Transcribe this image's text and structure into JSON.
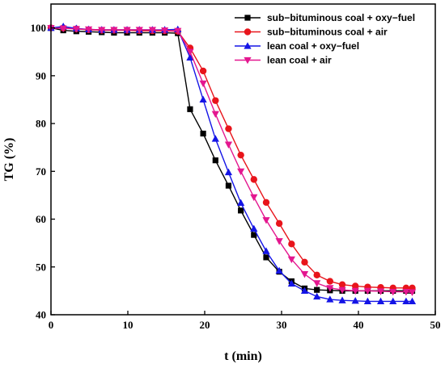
{
  "chart_data": {
    "type": "line",
    "xlabel": "t (min)",
    "ylabel": "TG (%)",
    "xlim": [
      0,
      50
    ],
    "ylim": [
      40,
      105
    ],
    "xticks": [
      0,
      10,
      20,
      30,
      40,
      50
    ],
    "yticks": [
      40,
      50,
      60,
      70,
      80,
      90,
      100
    ],
    "grid": false,
    "legend_position": "top-right",
    "series": [
      {
        "name": "sub−bituminous coal + oxy−fuel",
        "color": "#000000",
        "marker": "square",
        "x": [
          0,
          1.6,
          3.3,
          4.9,
          6.6,
          8.2,
          9.9,
          11.5,
          13.2,
          14.8,
          16.5,
          18.1,
          19.8,
          21.4,
          23.1,
          24.7,
          26.4,
          28.0,
          29.7,
          31.3,
          33.0,
          34.6,
          36.3,
          37.9,
          39.6,
          41.2,
          42.9,
          44.5,
          46.2,
          47.0
        ],
        "y": [
          100,
          99.5,
          99.3,
          99.2,
          99.1,
          99.0,
          99.0,
          99.0,
          99.0,
          99.0,
          98.9,
          83.0,
          77.9,
          72.3,
          67.0,
          61.8,
          56.7,
          52.0,
          49.0,
          47.0,
          45.5,
          45.2,
          45.1,
          45.0,
          45.0,
          45.0,
          45.0,
          45.0,
          45.0,
          45.0
        ]
      },
      {
        "name": "sub−bituminous coal + air",
        "color": "#e8141b",
        "marker": "circle",
        "x": [
          0,
          1.6,
          3.3,
          4.9,
          6.6,
          8.2,
          9.9,
          11.5,
          13.2,
          14.8,
          16.5,
          18.1,
          19.8,
          21.4,
          23.1,
          24.7,
          26.4,
          28.0,
          29.7,
          31.3,
          33.0,
          34.6,
          36.3,
          37.9,
          39.6,
          41.2,
          42.9,
          44.5,
          46.2,
          47.0
        ],
        "y": [
          100,
          100,
          99.8,
          99.6,
          99.5,
          99.5,
          99.5,
          99.4,
          99.4,
          99.4,
          99.3,
          95.8,
          91.0,
          84.8,
          78.9,
          73.4,
          68.3,
          63.5,
          59.1,
          54.8,
          51.0,
          48.3,
          47.0,
          46.3,
          46.0,
          45.8,
          45.7,
          45.6,
          45.6,
          45.6
        ]
      },
      {
        "name": "lean coal + oxy−fuel",
        "color": "#1414e6",
        "marker": "triangle-up",
        "x": [
          0,
          1.6,
          3.3,
          4.9,
          6.6,
          8.2,
          9.9,
          11.5,
          13.2,
          14.8,
          16.5,
          18.1,
          19.8,
          21.4,
          23.1,
          24.7,
          26.4,
          28.0,
          29.7,
          31.3,
          33.0,
          34.6,
          36.3,
          37.9,
          39.6,
          41.2,
          42.9,
          44.5,
          46.2,
          47.0
        ],
        "y": [
          100,
          100.3,
          99.9,
          99.7,
          99.6,
          99.6,
          99.6,
          99.6,
          99.6,
          99.6,
          99.7,
          93.8,
          85.0,
          76.8,
          69.8,
          63.4,
          58.0,
          53.3,
          49.2,
          46.5,
          45.0,
          43.8,
          43.2,
          43.0,
          42.9,
          42.8,
          42.8,
          42.8,
          42.8,
          42.8
        ]
      },
      {
        "name": "lean coal + air",
        "color": "#e4178f",
        "marker": "triangle-down",
        "x": [
          0,
          1.6,
          3.3,
          4.9,
          6.6,
          8.2,
          9.9,
          11.5,
          13.2,
          14.8,
          16.5,
          18.1,
          19.8,
          21.4,
          23.1,
          24.7,
          26.4,
          28.0,
          29.7,
          31.3,
          33.0,
          34.6,
          36.3,
          37.9,
          39.6,
          41.2,
          42.9,
          44.5,
          46.2,
          47.0
        ],
        "y": [
          100,
          99.9,
          99.8,
          99.7,
          99.6,
          99.6,
          99.6,
          99.6,
          99.6,
          99.5,
          99.4,
          95.0,
          88.4,
          82.0,
          75.6,
          70.0,
          64.6,
          59.8,
          55.4,
          51.6,
          48.5,
          46.6,
          45.6,
          45.2,
          45.0,
          45.0,
          44.9,
          44.8,
          44.8,
          44.7
        ]
      }
    ]
  }
}
